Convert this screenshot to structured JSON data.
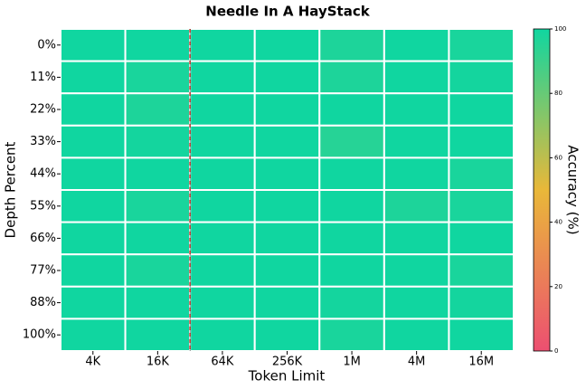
{
  "chart_data": {
    "type": "heatmap",
    "title": "Needle In A HayStack",
    "x_label": "Token Limit",
    "y_label": "Depth Percent",
    "colorbar_label": "Accuracy (%)",
    "x_categories": [
      "4K",
      "16K",
      "64K",
      "256K",
      "1M",
      "4M",
      "16M"
    ],
    "y_categories": [
      "0%",
      "11%",
      "22%",
      "33%",
      "44%",
      "55%",
      "66%",
      "77%",
      "88%",
      "100%"
    ],
    "values": [
      [
        100,
        100,
        100,
        100,
        97,
        100,
        98
      ],
      [
        100,
        98,
        100,
        100,
        97,
        100,
        99
      ],
      [
        100,
        97,
        100,
        100,
        100,
        100,
        100
      ],
      [
        100,
        99,
        100,
        100,
        95,
        100,
        100
      ],
      [
        100,
        100,
        100,
        100,
        100,
        100,
        98
      ],
      [
        100,
        98,
        100,
        100,
        100,
        97,
        98
      ],
      [
        100,
        100,
        100,
        100,
        100,
        100,
        100
      ],
      [
        100,
        98,
        100,
        100,
        100,
        100,
        98
      ],
      [
        100,
        100,
        100,
        100,
        99,
        100,
        99
      ],
      [
        100,
        100,
        100,
        100,
        98,
        100,
        100
      ]
    ],
    "clim": [
      0,
      100
    ],
    "cticks": [
      0,
      20,
      40,
      60,
      80,
      100
    ],
    "colormap": [
      "#ec4f71",
      "#e9b839",
      "#10d6a0"
    ]
  }
}
